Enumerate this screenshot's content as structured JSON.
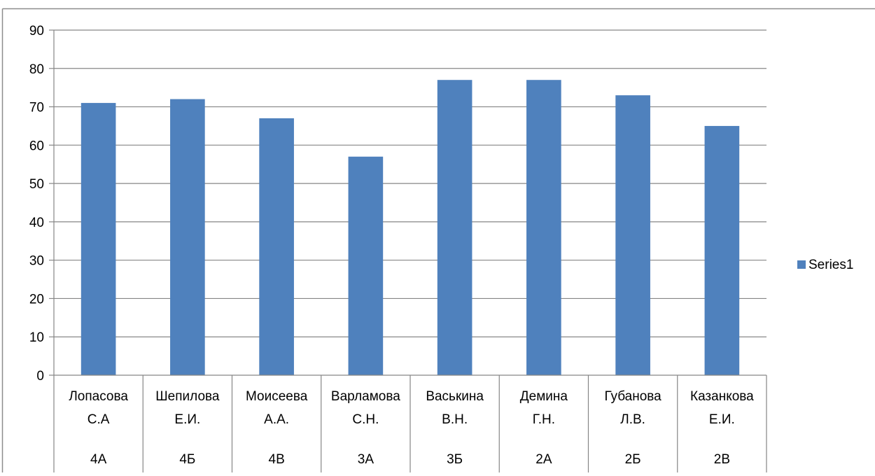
{
  "chart_data": {
    "type": "bar",
    "categories": [
      {
        "name_line1": "Лопасова",
        "name_line2": "С.А",
        "group": "4А"
      },
      {
        "name_line1": "Шепилова",
        "name_line2": "Е.И.",
        "group": "4Б"
      },
      {
        "name_line1": "Моисеева",
        "name_line2": "А.А.",
        "group": "4В"
      },
      {
        "name_line1": "Варламова",
        "name_line2": "С.Н.",
        "group": "3А"
      },
      {
        "name_line1": "Васькина",
        "name_line2": "В.Н.",
        "group": "3Б"
      },
      {
        "name_line1": "Демина",
        "name_line2": "Г.Н.",
        "group": "2А"
      },
      {
        "name_line1": "Губанова",
        "name_line2": "Л.В.",
        "group": "2Б"
      },
      {
        "name_line1": "Казанкова",
        "name_line2": "Е.И.",
        "group": "2В"
      }
    ],
    "series": [
      {
        "name": "Series1",
        "values": [
          71,
          72,
          67,
          57,
          77,
          77,
          73,
          65
        ],
        "color": "#4F81BD"
      }
    ],
    "ylim": [
      0,
      90
    ],
    "yticks": [
      0,
      10,
      20,
      30,
      40,
      50,
      60,
      70,
      80,
      90
    ],
    "grid": true,
    "legend": "right",
    "title": "",
    "xlabel": "",
    "ylabel": ""
  }
}
